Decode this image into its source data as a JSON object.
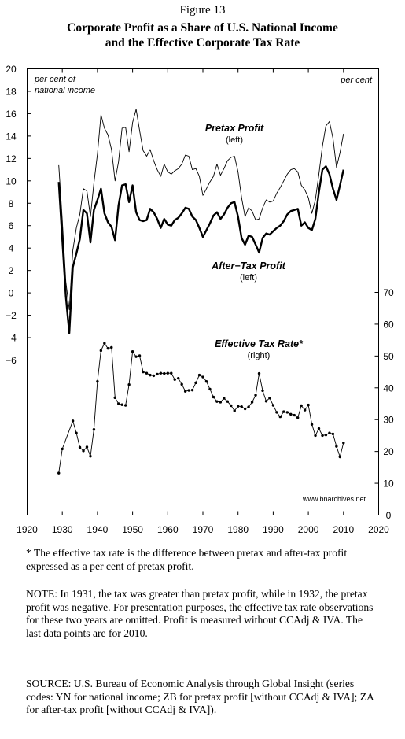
{
  "figure": {
    "label": "Figure 13",
    "title_line1": "Corporate Profit as a Share of U.S. National Income",
    "title_line2": "and the Effective Corporate Tax Rate"
  },
  "chart_data": {
    "type": "line",
    "x_axis": {
      "range": [
        1920,
        2020
      ],
      "ticks": [
        "1920",
        "1930",
        "1940",
        "1950",
        "1960",
        "1970",
        "1980",
        "1990",
        "2000",
        "2010",
        "2020"
      ]
    },
    "left_axis": {
      "range": [
        -6,
        20
      ],
      "ticks": [
        "20",
        "18",
        "16",
        "14",
        "12",
        "10",
        "8",
        "6",
        "4",
        "2",
        "0",
        "−2",
        "−4",
        "−6"
      ],
      "label_line1": "per cent of",
      "label_line2": "national income"
    },
    "right_axis": {
      "range": [
        0,
        70
      ],
      "ticks": [
        "70",
        "60",
        "50",
        "40",
        "30",
        "20",
        "10",
        "0"
      ],
      "label": "per cent"
    },
    "series": [
      {
        "name": "Pretax Profit",
        "note": "(left)",
        "axis": "left",
        "x": [
          1929,
          1930,
          1931,
          1932,
          1933,
          1934,
          1935,
          1936,
          1937,
          1938,
          1939,
          1940,
          1941,
          1942,
          1943,
          1944,
          1945,
          1946,
          1947,
          1948,
          1949,
          1950,
          1951,
          1952,
          1953,
          1954,
          1955,
          1956,
          1957,
          1958,
          1959,
          1960,
          1961,
          1962,
          1963,
          1964,
          1965,
          1966,
          1967,
          1968,
          1969,
          1970,
          1971,
          1972,
          1973,
          1974,
          1975,
          1976,
          1977,
          1978,
          1979,
          1980,
          1981,
          1982,
          1983,
          1984,
          1985,
          1986,
          1987,
          1988,
          1989,
          1990,
          1991,
          1992,
          1993,
          1994,
          1995,
          1996,
          1997,
          1998,
          1999,
          2000,
          2001,
          2002,
          2003,
          2004,
          2005,
          2006,
          2007,
          2008,
          2009,
          2010
        ],
        "y": [
          11.4,
          6.5,
          1.0,
          -1.5,
          3.8,
          5.8,
          7.0,
          9.3,
          9.1,
          6.8,
          9.8,
          12.4,
          15.9,
          14.7,
          14.1,
          12.8,
          10.0,
          11.7,
          14.7,
          14.8,
          12.6,
          15.2,
          16.4,
          14.5,
          12.7,
          12.2,
          12.8,
          11.8,
          11.0,
          10.4,
          11.5,
          10.8,
          10.6,
          10.9,
          11.1,
          11.5,
          12.3,
          12.2,
          11.0,
          11.1,
          10.4,
          8.7,
          9.3,
          9.9,
          10.4,
          11.5,
          10.5,
          11.1,
          11.8,
          12.1,
          12.2,
          10.8,
          8.5,
          6.8,
          7.6,
          7.3,
          6.5,
          6.6,
          7.6,
          8.3,
          8.1,
          8.2,
          8.9,
          9.4,
          10.0,
          10.6,
          11.0,
          11.1,
          10.8,
          9.6,
          9.2,
          8.5,
          7.1,
          8.3,
          10.6,
          13.1,
          14.9,
          15.3,
          13.8,
          11.2,
          12.5,
          14.2
        ]
      },
      {
        "name": "After−Tax Profit",
        "note": "(left)",
        "axis": "left",
        "x": [
          1929,
          1930,
          1931,
          1932,
          1933,
          1934,
          1935,
          1936,
          1937,
          1938,
          1939,
          1940,
          1941,
          1942,
          1943,
          1944,
          1945,
          1946,
          1947,
          1948,
          1949,
          1950,
          1951,
          1952,
          1953,
          1954,
          1955,
          1956,
          1957,
          1958,
          1959,
          1960,
          1961,
          1962,
          1963,
          1964,
          1965,
          1966,
          1967,
          1968,
          1969,
          1970,
          1971,
          1972,
          1973,
          1974,
          1975,
          1976,
          1977,
          1978,
          1979,
          1980,
          1981,
          1982,
          1983,
          1984,
          1985,
          1986,
          1987,
          1988,
          1989,
          1990,
          1991,
          1992,
          1993,
          1994,
          1995,
          1996,
          1997,
          1998,
          1999,
          2000,
          2001,
          2002,
          2003,
          2004,
          2005,
          2006,
          2007,
          2008,
          2009,
          2010
        ],
        "y": [
          9.9,
          4.8,
          -0.3,
          -3.6,
          2.3,
          3.5,
          4.8,
          7.4,
          7.1,
          4.5,
          7.4,
          8.3,
          9.3,
          7.1,
          6.3,
          5.9,
          4.7,
          7.8,
          9.6,
          9.7,
          8.1,
          9.6,
          7.2,
          6.5,
          6.4,
          6.5,
          7.5,
          7.2,
          6.6,
          5.8,
          6.6,
          6.1,
          6.0,
          6.5,
          6.7,
          7.1,
          7.6,
          7.5,
          6.8,
          6.5,
          5.8,
          5.0,
          5.6,
          6.2,
          6.9,
          7.2,
          6.6,
          7.0,
          7.6,
          8.0,
          8.1,
          6.8,
          4.9,
          4.3,
          5.1,
          5.0,
          4.3,
          3.6,
          4.9,
          5.3,
          5.2,
          5.5,
          5.8,
          6.0,
          6.4,
          7.0,
          7.3,
          7.4,
          7.5,
          6.0,
          6.3,
          5.8,
          5.6,
          6.6,
          9.0,
          11.0,
          11.3,
          10.6,
          9.3,
          8.3,
          9.6,
          11.0
        ]
      },
      {
        "name": "Effective Tax Rate*",
        "note": "(right)",
        "axis": "right",
        "x": [
          1929,
          1930,
          1933,
          1934,
          1935,
          1936,
          1937,
          1938,
          1939,
          1940,
          1941,
          1942,
          1943,
          1944,
          1945,
          1946,
          1947,
          1948,
          1949,
          1950,
          1951,
          1952,
          1953,
          1954,
          1955,
          1956,
          1957,
          1958,
          1959,
          1960,
          1961,
          1962,
          1963,
          1964,
          1965,
          1966,
          1967,
          1968,
          1969,
          1970,
          1971,
          1972,
          1973,
          1974,
          1975,
          1976,
          1977,
          1978,
          1979,
          1980,
          1981,
          1982,
          1983,
          1984,
          1985,
          1986,
          1987,
          1988,
          1989,
          1990,
          1991,
          1992,
          1993,
          1994,
          1995,
          1996,
          1997,
          1998,
          1999,
          2000,
          2001,
          2002,
          2003,
          2004,
          2005,
          2006,
          2007,
          2008,
          2009,
          2010
        ],
        "y": [
          13.2,
          20.8,
          29.6,
          25.8,
          21.3,
          20.2,
          21.4,
          18.5,
          26.9,
          42.0,
          51.7,
          54.0,
          52.4,
          52.7,
          36.9,
          35.0,
          34.7,
          34.5,
          41.0,
          51.4,
          49.8,
          50.1,
          45.0,
          44.6,
          44.0,
          43.8,
          44.3,
          44.6,
          44.5,
          44.6,
          44.6,
          42.6,
          43.0,
          41.1,
          38.9,
          39.2,
          39.3,
          41.6,
          44.0,
          43.4,
          42.0,
          39.6,
          37.1,
          35.7,
          35.5,
          36.7,
          35.7,
          34.4,
          32.8,
          34.2,
          34.1,
          33.4,
          34.0,
          35.5,
          37.7,
          44.5,
          39.1,
          35.8,
          36.8,
          34.5,
          32.3,
          30.9,
          32.5,
          32.3,
          31.7,
          31.4,
          30.6,
          34.4,
          33.0,
          34.6,
          28.5,
          25.0,
          27.2,
          25.0,
          25.2,
          25.8,
          25.5,
          21.6,
          18.3,
          22.7
        ]
      }
    ],
    "watermark": "www.bnarchives.net",
    "grid": false
  },
  "notes": {
    "footnote": "* The effective tax rate is the difference between pretax and after-tax profit expressed as a per cent of pretax profit.",
    "note": "NOTE: In 1931, the tax was greater than pretax profit, while in 1932, the pretax profit was negative. For presentation purposes, the effective tax rate observations for these two years are omitted. Profit is measured without CCAdj & IVA. The last data points are for 2010.",
    "source": "SOURCE: U.S. Bureau of Economic Analysis through Global Insight (series codes: YN for national income; ZB for pretax profit [without CCAdj & IVA]; ZA for after-tax profit [without CCAdj & IVA])."
  }
}
